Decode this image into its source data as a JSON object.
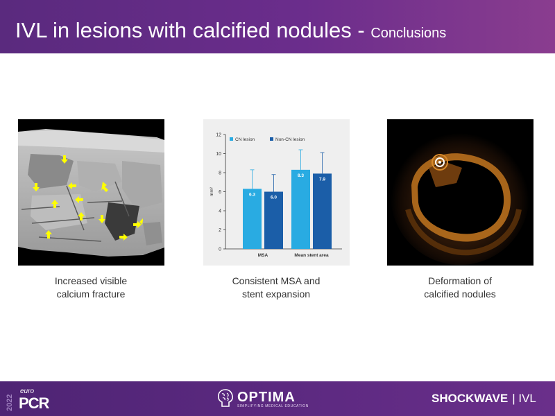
{
  "header": {
    "title_main": "IVL in lesions with calcified nodules - ",
    "title_sub": "Conclusions"
  },
  "panels": [
    {
      "caption_line1": "Increased visible",
      "caption_line2": "calcium fracture",
      "image": "3d-calcium-rendering-with-arrows"
    },
    {
      "caption_line1": "Consistent MSA and",
      "caption_line2": "stent expansion",
      "image": "bar-chart"
    },
    {
      "caption_line1": "Deformation of",
      "caption_line2": "calcified nodules",
      "image": "oct-cross-section"
    }
  ],
  "chart_data": {
    "type": "bar",
    "categories": [
      "MSA",
      "Mean stent area"
    ],
    "series": [
      {
        "name": "CN lesion",
        "values": [
          6.3,
          8.3
        ],
        "error_upper": [
          8.3,
          10.4
        ],
        "color": "#29abe2"
      },
      {
        "name": "Non-CN lesion",
        "values": [
          6.0,
          7.9
        ],
        "error_upper": [
          7.8,
          10.1
        ],
        "color": "#1b5ea8"
      }
    ],
    "value_labels": [
      "6.3",
      "6.0",
      "8.3",
      "7.9"
    ],
    "ylabel": "mm²",
    "ylim": [
      0,
      12
    ],
    "yticks": [
      "0",
      "2",
      "4",
      "6",
      "8",
      "10",
      "12"
    ],
    "legend": "top-left",
    "grid": false
  },
  "footer": {
    "year": "2022",
    "euro": "euro",
    "pcr": "PCR",
    "optima": "OPTIMA",
    "optima_tagline": "SIMPLIFYING MEDICAL EDUCATION",
    "shockwave": "SHOCKWAVE",
    "ivl": "| IVL"
  },
  "colors": {
    "header": "#6b2d8c",
    "footer": "#5e2a82",
    "arrow": "#ffff00",
    "oct_glow": "#d98a2a"
  },
  "icons": [
    "optima-brain-icon"
  ]
}
